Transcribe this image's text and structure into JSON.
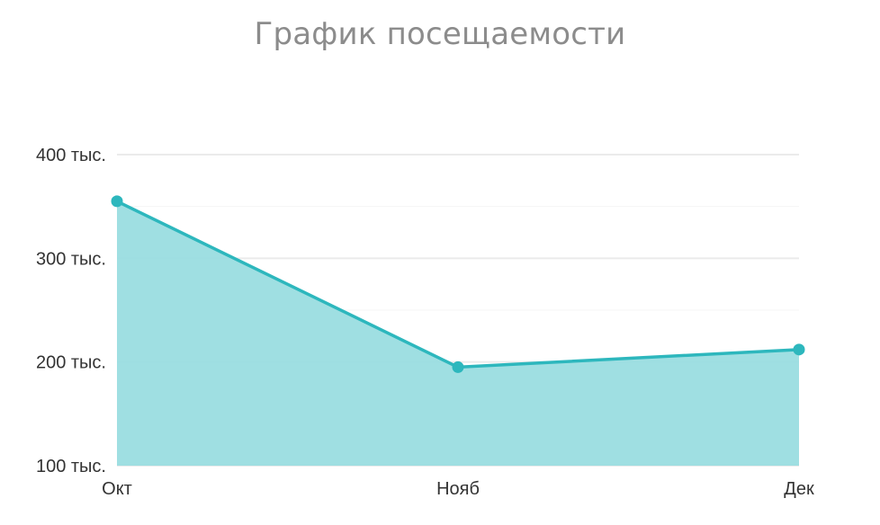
{
  "chart_data": {
    "type": "area",
    "title": "График посещаемости",
    "categories": [
      "Окт",
      "Нояб",
      "Дек"
    ],
    "series": [
      {
        "values": [
          355000,
          195000,
          212000
        ]
      }
    ],
    "ylim": [
      100000,
      400000
    ],
    "yticks": [
      {
        "value": 100000,
        "label": "100 тыс."
      },
      {
        "value": 200000,
        "label": "200 тыс."
      },
      {
        "value": 300000,
        "label": "300 тыс."
      },
      {
        "value": 400000,
        "label": "400 тыс."
      }
    ],
    "grid": true,
    "legend": "none",
    "colors": {
      "line": "#2db7bd",
      "fill": "#9adde0",
      "grid": "#ebebeb",
      "title": "#8c8c8c",
      "ticks": "#333333"
    }
  }
}
